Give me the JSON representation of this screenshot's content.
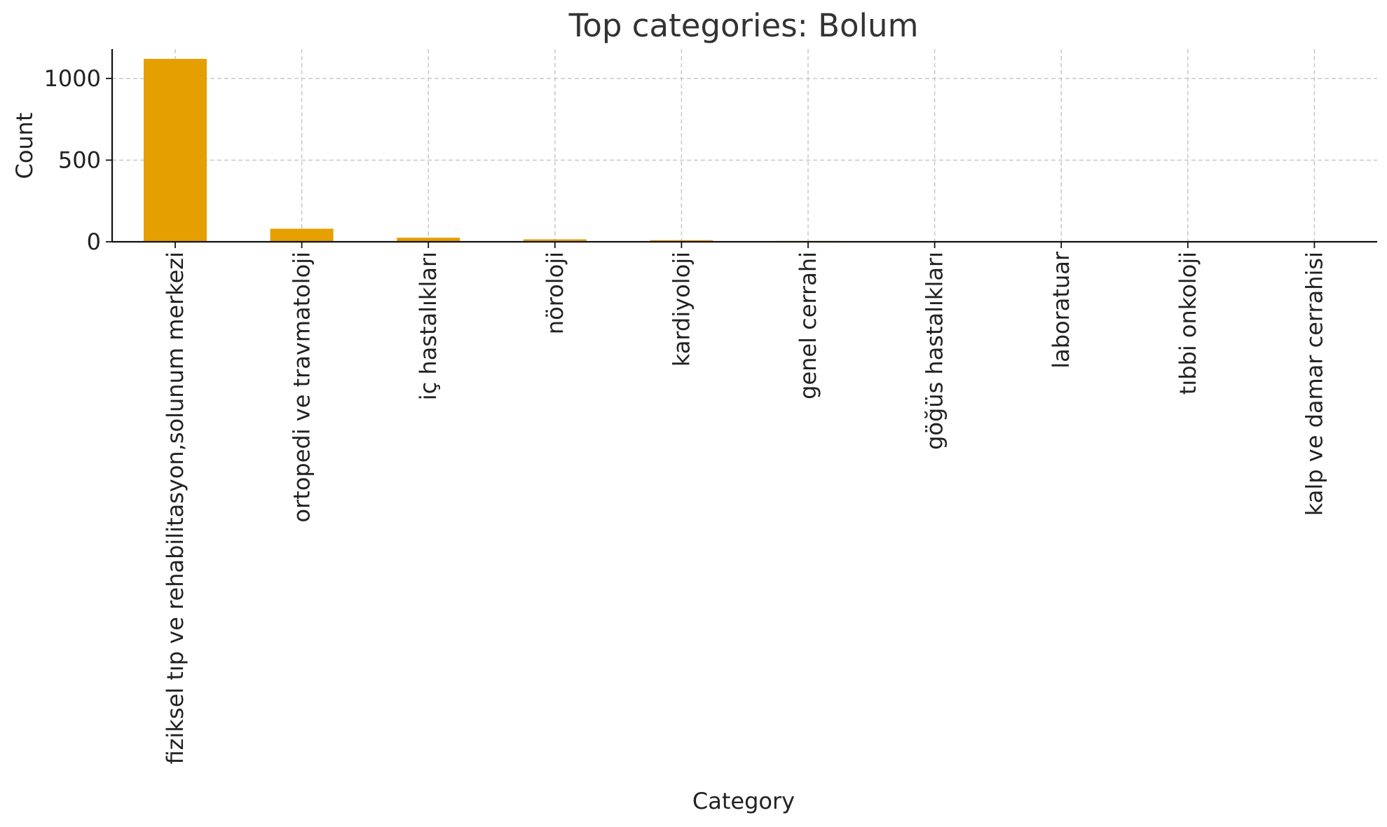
{
  "chart_data": {
    "type": "bar",
    "title": "Top categories: Bolum",
    "xlabel": "Category",
    "ylabel": "Count",
    "ylim": [
      0,
      1180
    ],
    "yticks": [
      0,
      500,
      1000
    ],
    "grid": true,
    "bar_color": "#E69F00",
    "categories": [
      "fiziksel tıp ve rehabilitasyon,solunum merkezi",
      "ortopedi ve travmatoloji",
      "iç hastalıkları",
      "nöroloji",
      "kardiyoloji",
      "genel cerrahi",
      "göğüs hastalıkları",
      "laboratuar",
      "tıbbi onkoloji",
      "kalp ve damar cerrahisi"
    ],
    "values": [
      1120,
      80,
      25,
      15,
      10,
      5,
      4,
      3,
      2,
      2
    ]
  }
}
